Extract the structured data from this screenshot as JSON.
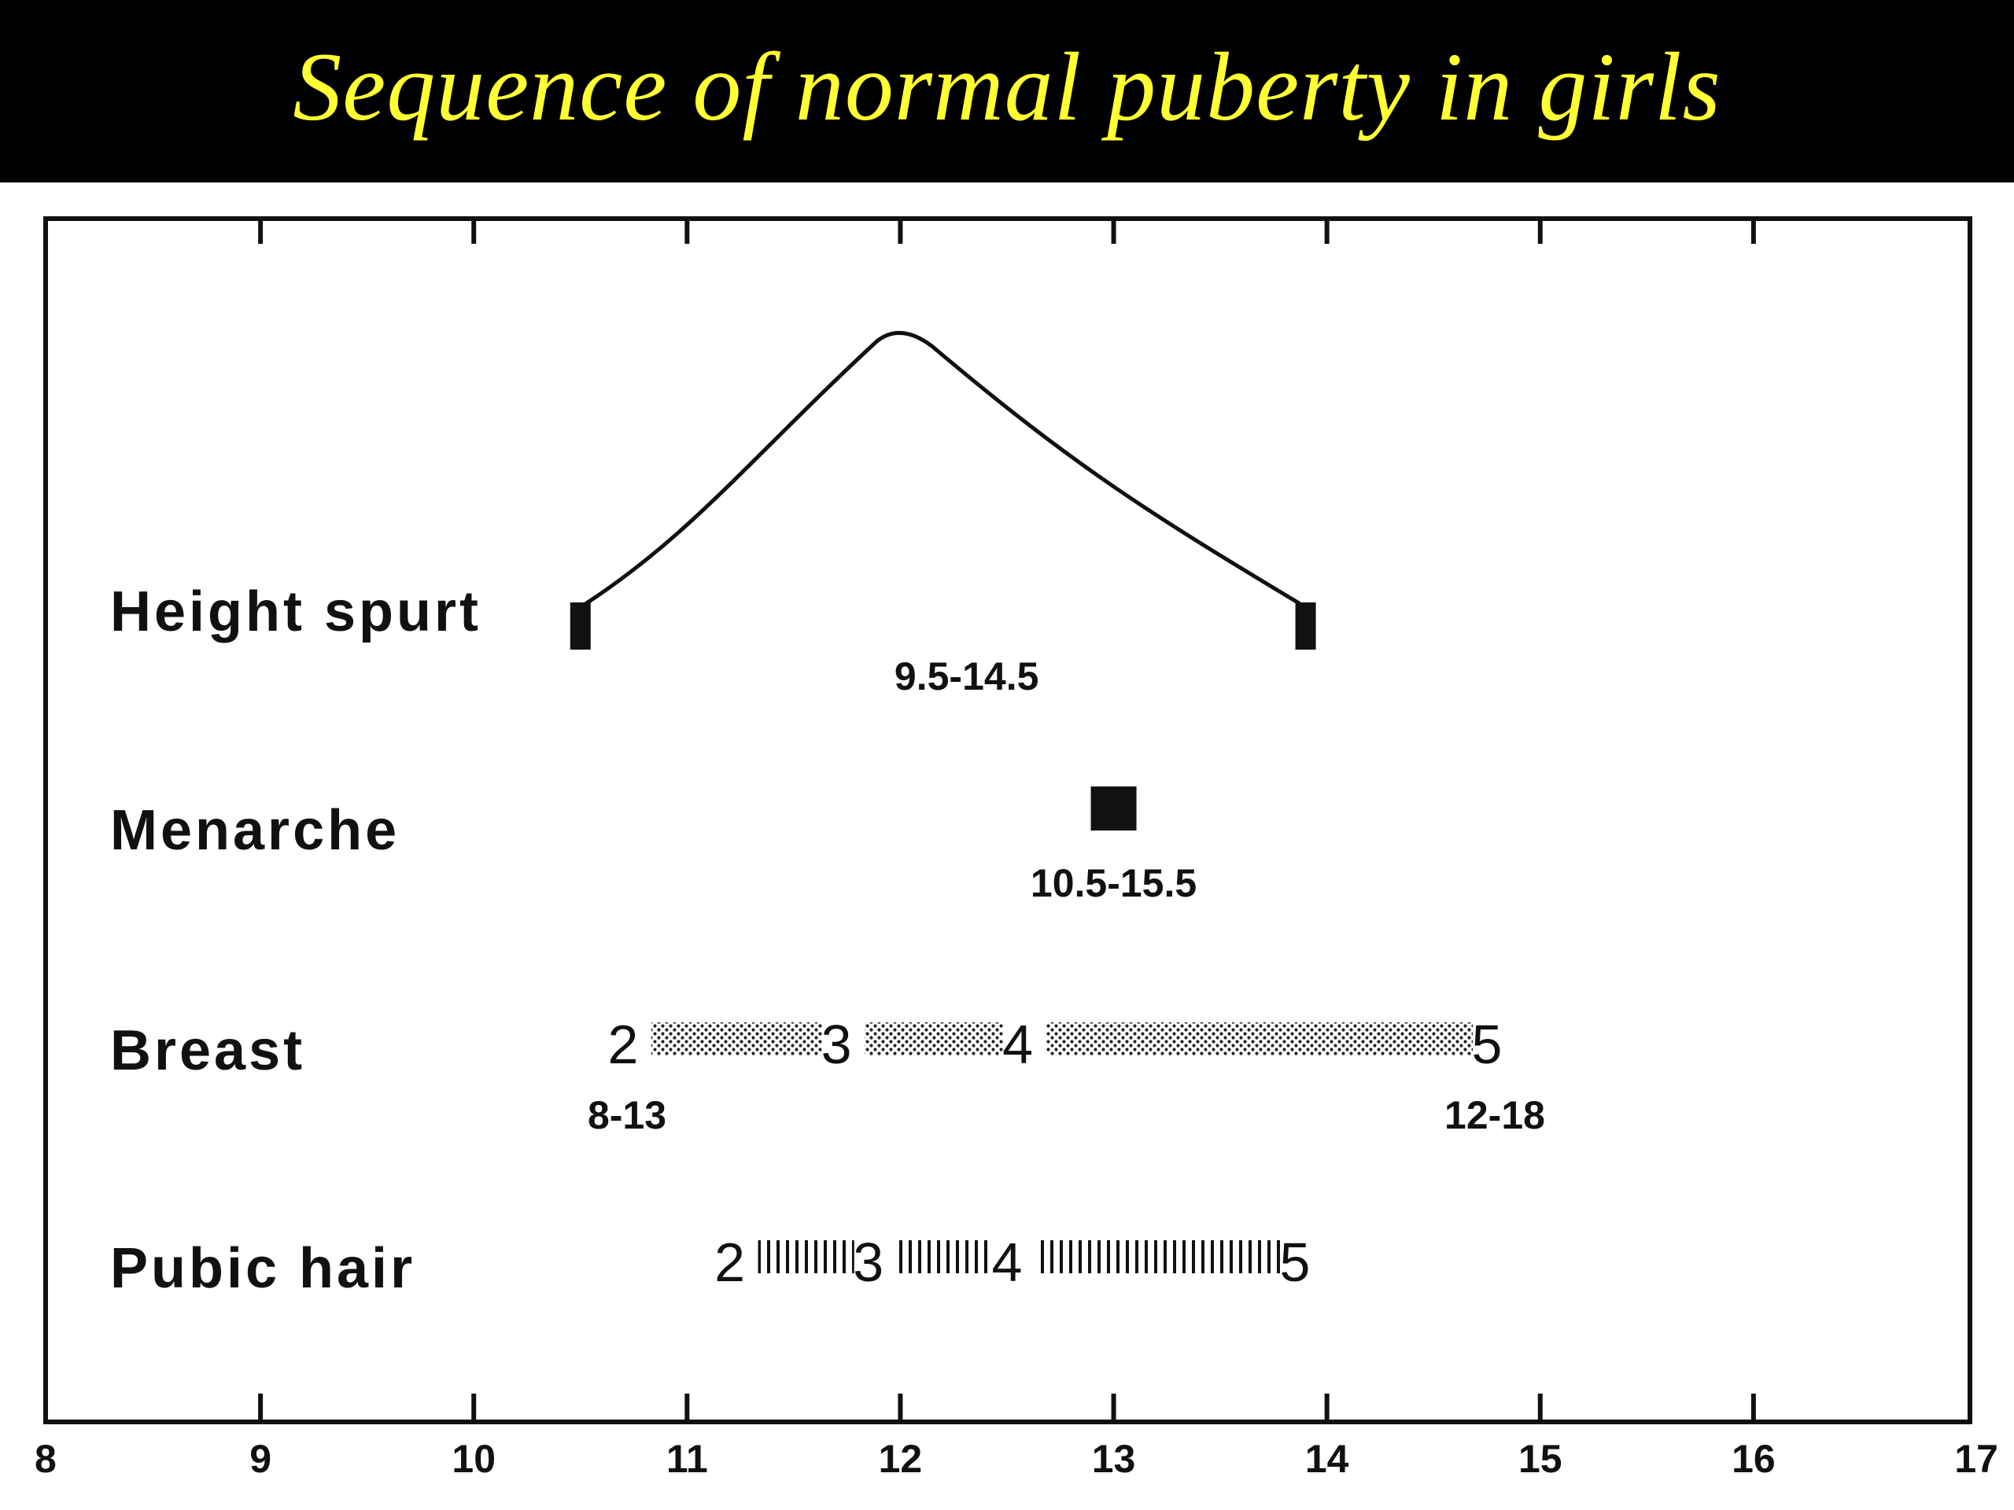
{
  "title": "Sequence of normal puberty in girls",
  "colors": {
    "title_bar": "#000000",
    "title_text": "#ffff33",
    "ink": "#111111"
  },
  "chart_data": {
    "type": "timeline",
    "x_axis": {
      "range": [
        8,
        17
      ],
      "ticks": [
        8,
        9,
        10,
        11,
        12,
        13,
        14,
        15,
        16,
        17
      ],
      "tick_labels": [
        "8",
        "9",
        "10",
        "11",
        "12",
        "13",
        "14",
        "15",
        "16",
        "17"
      ]
    },
    "rows": [
      {
        "label": "Height spurt",
        "kind": "peak",
        "start": 10.5,
        "peak": 12.0,
        "end": 13.9,
        "range_label": "9.5-14.5"
      },
      {
        "label": "Menarche",
        "kind": "point",
        "at": 13.0,
        "range_label": "10.5-15.5"
      },
      {
        "label": "Breast",
        "kind": "stages",
        "fill": "stippled",
        "stages": [
          {
            "label": "2",
            "at": 10.7
          },
          {
            "label": "3",
            "at": 11.7
          },
          {
            "label": "4",
            "at": 12.55
          },
          {
            "label": "5",
            "at": 14.75
          }
        ],
        "start_range_label": "8-13",
        "end_range_label": "12-18"
      },
      {
        "label": "Pubic hair",
        "kind": "stages",
        "fill": "hatched",
        "stages": [
          {
            "label": "2",
            "at": 11.2
          },
          {
            "label": "3",
            "at": 11.85
          },
          {
            "label": "4",
            "at": 12.5
          },
          {
            "label": "5",
            "at": 13.85
          }
        ]
      }
    ]
  }
}
